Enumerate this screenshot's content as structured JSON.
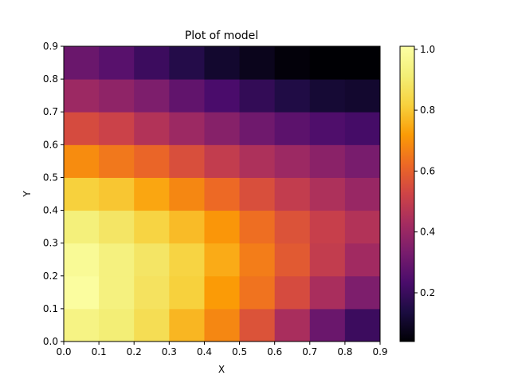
{
  "chart_data": {
    "type": "heatmap",
    "title": "Plot of model",
    "xlabel": "X",
    "ylabel": "Y",
    "xlim": [
      0,
      0.9
    ],
    "ylim": [
      0,
      0.9
    ],
    "x_edges": [
      0.0,
      0.1,
      0.2,
      0.3,
      0.4,
      0.5,
      0.6,
      0.7,
      0.8,
      0.9
    ],
    "y_edges": [
      0.0,
      0.1,
      0.2,
      0.3,
      0.4,
      0.5,
      0.6,
      0.7,
      0.8,
      0.9
    ],
    "x_ticks": [
      "0.0",
      "0.1",
      "0.2",
      "0.3",
      "0.4",
      "0.5",
      "0.6",
      "0.7",
      "0.8",
      "0.9"
    ],
    "y_ticks": [
      "0.0",
      "0.1",
      "0.2",
      "0.3",
      "0.4",
      "0.5",
      "0.6",
      "0.7",
      "0.8",
      "0.9"
    ],
    "colormap": "inferno",
    "colorbar_range": [
      0.04,
      1.01
    ],
    "colorbar_ticks": [
      "0.2",
      "0.4",
      "0.6",
      "0.8",
      "1.0"
    ],
    "values": [
      [
        0.93,
        0.9,
        0.84,
        0.75,
        0.66,
        0.54,
        0.41,
        0.27,
        0.17
      ],
      [
        0.99,
        0.92,
        0.86,
        0.8,
        0.7,
        0.62,
        0.52,
        0.41,
        0.31
      ],
      [
        0.97,
        0.92,
        0.87,
        0.81,
        0.73,
        0.64,
        0.56,
        0.47,
        0.39
      ],
      [
        0.91,
        0.87,
        0.81,
        0.76,
        0.69,
        0.61,
        0.54,
        0.48,
        0.43
      ],
      [
        0.8,
        0.78,
        0.72,
        0.66,
        0.6,
        0.53,
        0.47,
        0.42,
        0.37
      ],
      [
        0.67,
        0.63,
        0.59,
        0.53,
        0.47,
        0.42,
        0.38,
        0.34,
        0.3
      ],
      [
        0.52,
        0.49,
        0.43,
        0.38,
        0.33,
        0.28,
        0.24,
        0.21,
        0.19
      ],
      [
        0.38,
        0.35,
        0.31,
        0.25,
        0.2,
        0.15,
        0.11,
        0.08,
        0.07
      ],
      [
        0.27,
        0.23,
        0.17,
        0.12,
        0.07,
        0.04,
        0.01,
        0.0,
        0.0
      ]
    ]
  }
}
